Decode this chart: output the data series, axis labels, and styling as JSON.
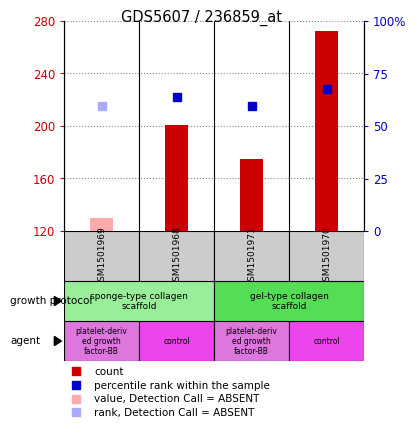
{
  "title": "GDS5607 / 236859_at",
  "samples": [
    "GSM1501969",
    "GSM1501968",
    "GSM1501971",
    "GSM1501970"
  ],
  "bar_values": [
    null,
    201,
    175,
    272
  ],
  "bar_absent_values": [
    130,
    null,
    null,
    null
  ],
  "rank_values_left": [
    null,
    222,
    215,
    228
  ],
  "rank_absent_values_left": [
    215,
    null,
    null,
    null
  ],
  "ylim_left": [
    120,
    280
  ],
  "ylim_right": [
    0,
    100
  ],
  "yticks_left": [
    120,
    160,
    200,
    240,
    280
  ],
  "yticks_right": [
    0,
    25,
    50,
    75,
    100
  ],
  "ytick_right_labels": [
    "0",
    "25",
    "50",
    "75",
    "100%"
  ],
  "bar_color": "#cc0000",
  "bar_absent_color": "#ffaaaa",
  "rank_color": "#0000cc",
  "rank_absent_color": "#aaaaff",
  "grid_color": "#888888",
  "plot_bg": "#ffffff",
  "sample_box_bg": "#cccccc",
  "growth_protocol": [
    "sponge-type collagen\nscaffold",
    "gel-type collagen\nscaffold"
  ],
  "growth_colors": [
    "#99ee99",
    "#55dd55"
  ],
  "agent_labels": [
    "platelet-deriv\ned growth\nfactor-BB",
    "control",
    "platelet-deriv\ned growth\nfactor-BB",
    "control"
  ],
  "agent_colors": [
    "#dd77dd",
    "#ee44ee",
    "#dd77dd",
    "#ee44ee"
  ],
  "legend_items": [
    "count",
    "percentile rank within the sample",
    "value, Detection Call = ABSENT",
    "rank, Detection Call = ABSENT"
  ],
  "legend_colors": [
    "#cc0000",
    "#0000cc",
    "#ffaaaa",
    "#aaaaff"
  ]
}
